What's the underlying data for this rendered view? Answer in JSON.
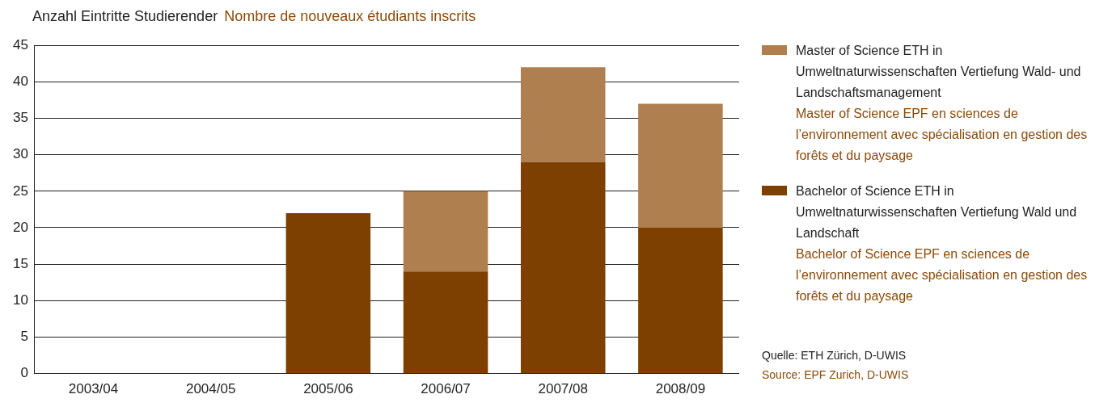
{
  "chart_data": {
    "type": "bar",
    "title": "Anzahl Eintritte Studierender",
    "subtitle": "Nombre de nouveaux étudiants inscrits",
    "categories": [
      "2003/04",
      "2004/05",
      "2005/06",
      "2006/07",
      "2007/08",
      "2008/09"
    ],
    "stacked": true,
    "series": [
      {
        "name": "Bachelor of Science ETH in Umweltnaturwissenschaften Vertiefung Wald und Landschaft\nBachelor of Science EPF en sciences de l’environnement avec spécialisation en gestion des forêts et du paysage",
        "color": "#7d4000",
        "values": [
          0,
          0,
          22,
          14,
          29,
          20
        ]
      },
      {
        "name": "Master of Science ETH in Umweltnaturwissenschaften Vertiefung Wald- und Landschaftsmanagement\nMaster of Science EPF en sciences de l’environnement avec spécialisation en gestion des forêts et du paysage",
        "color": "#b07f50",
        "values": [
          0,
          0,
          0,
          11,
          13,
          17
        ]
      }
    ],
    "ylim": [
      0,
      45
    ],
    "yticks": [
      0,
      5,
      10,
      15,
      20,
      25,
      30,
      35,
      40,
      45
    ],
    "grid": "y",
    "legend": "right",
    "annotations": [
      "Quelle: ETH Zürich, D-UWIS",
      "Source: EPF Zurich, D-UWIS"
    ]
  }
}
